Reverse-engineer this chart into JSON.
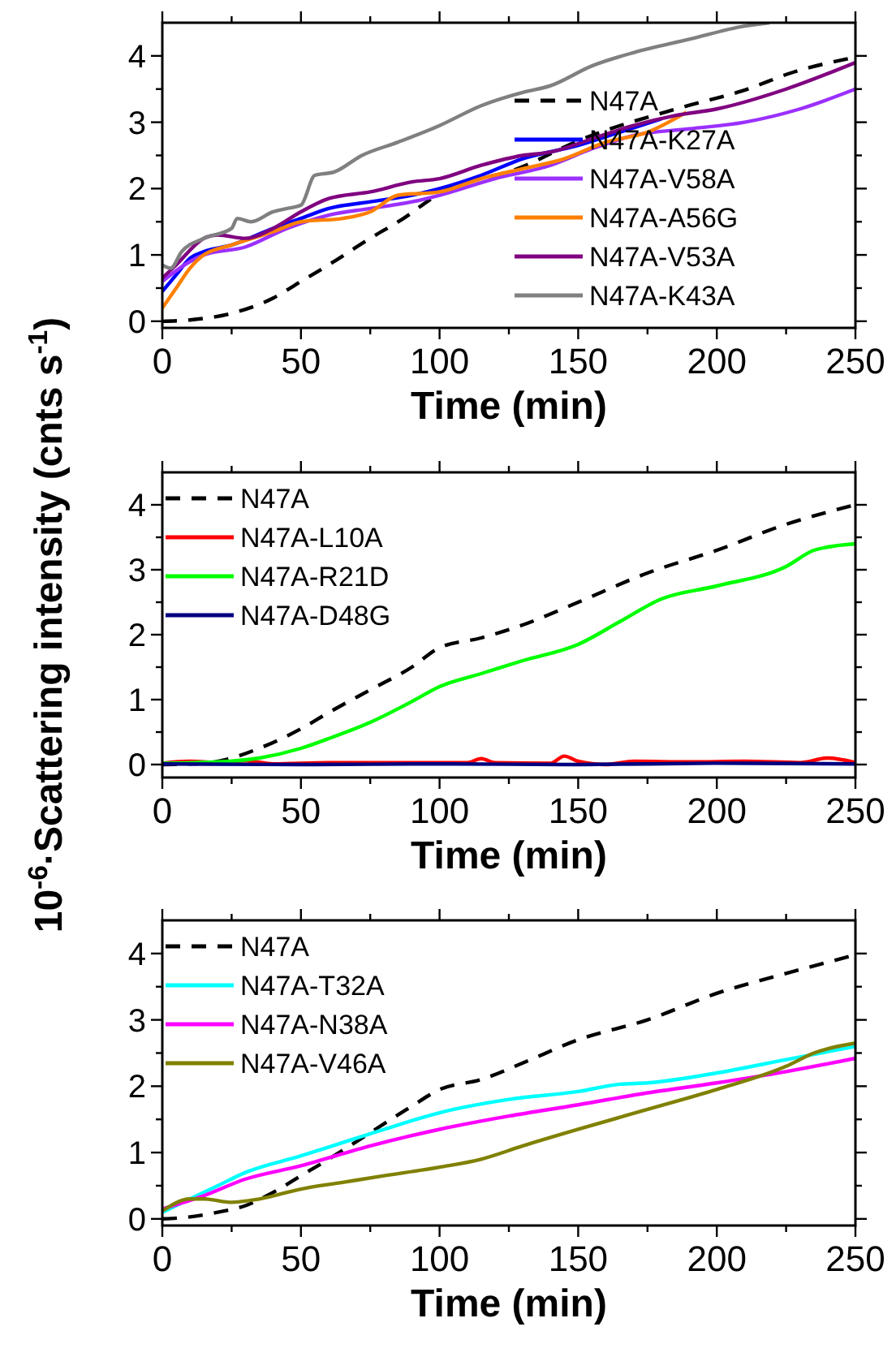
{
  "chart_data": [
    {
      "type": "line",
      "xlabel": "Time (min)",
      "xlim": [
        0,
        250
      ],
      "xticks": [
        0,
        {
          "value": 25,
          "label": null
        },
        50,
        {
          "value": 75,
          "label": null
        },
        100,
        {
          "value": 125,
          "label": null
        },
        150,
        {
          "value": 175,
          "label": null
        },
        200,
        {
          "value": 225,
          "label": null
        },
        250
      ],
      "ylim": [
        -0.1,
        4.5
      ],
      "yticks": [
        0,
        {
          "value": 0.5,
          "label": null
        },
        1,
        {
          "value": 1.5,
          "label": null
        },
        2,
        {
          "value": 2.5,
          "label": null
        },
        3,
        {
          "value": 3.5,
          "label": null
        },
        4
      ],
      "legend": "bottom right",
      "grid": false,
      "series": [
        {
          "name": "N47A",
          "color": "#000000",
          "line_style": "dashed",
          "x": [
            0,
            10,
            25,
            40,
            50,
            60,
            75,
            87,
            99,
            130,
            150,
            187,
            209,
            228,
            250
          ],
          "values": [
            0,
            0.02,
            0.12,
            0.35,
            0.6,
            0.85,
            1.25,
            1.55,
            1.9,
            2.33,
            2.72,
            3.22,
            3.47,
            3.76,
            3.98
          ]
        },
        {
          "name": "N47A-K27A",
          "color": "#0000ff",
          "x": [
            0,
            5,
            10,
            15,
            25,
            40,
            50,
            60,
            75,
            90,
            100,
            115,
            130,
            150,
            165,
            180
          ],
          "values": [
            0.45,
            0.7,
            0.95,
            1.05,
            1.15,
            1.4,
            1.55,
            1.7,
            1.8,
            1.9,
            2.0,
            2.2,
            2.45,
            2.65,
            2.85,
            3.05
          ]
        },
        {
          "name": "N47A-V58A",
          "color": "#9b30ff",
          "x": [
            0,
            10,
            15,
            30,
            45,
            60,
            75,
            90,
            100,
            120,
            140,
            155,
            170,
            190,
            210,
            230,
            250
          ],
          "values": [
            0.6,
            0.9,
            1.0,
            1.12,
            1.4,
            1.6,
            1.7,
            1.8,
            1.9,
            2.15,
            2.35,
            2.6,
            2.8,
            2.9,
            3.0,
            3.2,
            3.5
          ]
        },
        {
          "name": "N47A-A56G",
          "color": "#ff8000",
          "x": [
            0,
            5,
            10,
            15,
            25,
            40,
            50,
            65,
            75,
            85,
            100,
            115,
            130,
            145,
            160,
            175,
            189
          ],
          "values": [
            0.2,
            0.5,
            0.8,
            1.0,
            1.15,
            1.35,
            1.5,
            1.55,
            1.65,
            1.9,
            1.95,
            2.15,
            2.3,
            2.45,
            2.7,
            2.85,
            3.15
          ]
        },
        {
          "name": "N47A-V53A",
          "color": "#800080",
          "x": [
            0,
            5,
            15,
            20,
            30,
            40,
            50,
            60,
            75,
            90,
            100,
            115,
            130,
            140,
            155,
            170,
            185,
            200,
            225,
            250
          ],
          "values": [
            0.65,
            0.85,
            1.25,
            1.3,
            1.25,
            1.4,
            1.65,
            1.85,
            1.95,
            2.1,
            2.15,
            2.35,
            2.5,
            2.55,
            2.75,
            2.95,
            3.1,
            3.2,
            3.5,
            3.9
          ]
        },
        {
          "name": "N47A-K43A",
          "color": "#808080",
          "x": [
            0,
            3,
            7,
            15,
            25,
            27,
            32,
            40,
            45,
            50,
            55,
            62,
            72,
            85,
            100,
            115,
            130,
            140,
            155,
            170,
            190,
            210,
            219
          ],
          "values": [
            0.85,
            0.8,
            1.05,
            1.25,
            1.4,
            1.55,
            1.5,
            1.65,
            1.7,
            1.75,
            2.2,
            2.25,
            2.5,
            2.7,
            2.95,
            3.25,
            3.45,
            3.55,
            3.85,
            4.05,
            4.25,
            4.45,
            4.5
          ]
        }
      ]
    },
    {
      "type": "line",
      "xlabel": "Time (min)",
      "ylabel": "10$^{-6}$·Scattering intensity (cnts s$^{-1}$)",
      "xlim": [
        0,
        250
      ],
      "xticks": [
        0,
        {
          "value": 25,
          "label": null
        },
        50,
        {
          "value": 75,
          "label": null
        },
        100,
        {
          "value": 125,
          "label": null
        },
        150,
        {
          "value": 175,
          "label": null
        },
        200,
        {
          "value": 225,
          "label": null
        },
        250
      ],
      "ylim": [
        -0.2,
        4.5
      ],
      "yticks": [
        0,
        {
          "value": 0.5,
          "label": null
        },
        1,
        {
          "value": 1.5,
          "label": null
        },
        2,
        {
          "value": 2.5,
          "label": null
        },
        3,
        {
          "value": 3.5,
          "label": null
        },
        4
      ],
      "legend": "top left",
      "grid": false,
      "series": [
        {
          "name": "N47A",
          "color": "#000000",
          "line_style": "dashed",
          "x": [
            0,
            15,
            25,
            35,
            50,
            60,
            75,
            90,
            100,
            115,
            130,
            150,
            175,
            200,
            225,
            250
          ],
          "values": [
            0,
            0.02,
            0.1,
            0.25,
            0.55,
            0.8,
            1.15,
            1.5,
            1.8,
            1.95,
            2.15,
            2.5,
            2.95,
            3.3,
            3.7,
            4.0
          ]
        },
        {
          "name": "N47A-L10A",
          "color": "#ff0000",
          "x": [
            0,
            10,
            20,
            30,
            40,
            60,
            80,
            110,
            115,
            120,
            140,
            145,
            150,
            160,
            170,
            190,
            210,
            230,
            240,
            250
          ],
          "values": [
            0.02,
            0.05,
            0.03,
            0.06,
            0.01,
            0.03,
            0.03,
            0.03,
            0.09,
            0.03,
            0.02,
            0.13,
            0.05,
            0,
            0.05,
            0.04,
            0.05,
            0.03,
            0.1,
            0.03
          ]
        },
        {
          "name": "N47A-R21D",
          "color": "#00ff00",
          "x": [
            0,
            20,
            35,
            50,
            60,
            75,
            90,
            100,
            115,
            130,
            150,
            165,
            180,
            200,
            225,
            235,
            240,
            250
          ],
          "values": [
            0.02,
            0.04,
            0.1,
            0.25,
            0.4,
            0.65,
            0.97,
            1.2,
            1.4,
            1.6,
            1.85,
            2.2,
            2.55,
            2.75,
            3.05,
            3.3,
            3.35,
            3.4
          ]
        },
        {
          "name": "N47A-D48G",
          "color": "#000080",
          "x": [
            0,
            50,
            100,
            150,
            200,
            250
          ],
          "values": [
            0.01,
            0,
            0.01,
            0,
            0.02,
            0.01
          ]
        }
      ]
    },
    {
      "type": "line",
      "xlabel": "Time (min)",
      "xlim": [
        0,
        250
      ],
      "xticks": [
        0,
        {
          "value": 25,
          "label": null
        },
        50,
        {
          "value": 75,
          "label": null
        },
        100,
        {
          "value": 125,
          "label": null
        },
        150,
        {
          "value": 175,
          "label": null
        },
        200,
        {
          "value": 225,
          "label": null
        },
        250
      ],
      "ylim": [
        -0.1,
        4.5
      ],
      "yticks": [
        0,
        {
          "value": 0.5,
          "label": null
        },
        1,
        {
          "value": 1.5,
          "label": null
        },
        2,
        {
          "value": 2.5,
          "label": null
        },
        3,
        {
          "value": 3.5,
          "label": null
        },
        4
      ],
      "legend": "top left",
      "grid": false,
      "series": [
        {
          "name": "N47A",
          "color": "#000000",
          "line_style": "dashed",
          "x": [
            0,
            10,
            20,
            30,
            40,
            50,
            60,
            75,
            90,
            100,
            115,
            130,
            150,
            175,
            200,
            225,
            250
          ],
          "values": [
            0,
            0.03,
            0.1,
            0.2,
            0.4,
            0.65,
            0.9,
            1.3,
            1.7,
            1.95,
            2.1,
            2.35,
            2.7,
            3.0,
            3.4,
            3.7,
            3.98
          ]
        },
        {
          "name": "N47A-T32A",
          "color": "#00ffff",
          "x": [
            0,
            10,
            20,
            30,
            50,
            65,
            80,
            100,
            125,
            150,
            165,
            175,
            200,
            225,
            250
          ],
          "values": [
            0.1,
            0.3,
            0.5,
            0.7,
            0.95,
            1.15,
            1.35,
            1.6,
            1.8,
            1.92,
            2.03,
            2.05,
            2.2,
            2.4,
            2.6
          ]
        },
        {
          "name": "N47A-N38A",
          "color": "#ff00ff",
          "x": [
            0,
            15,
            30,
            50,
            75,
            100,
            125,
            150,
            175,
            200,
            225,
            250
          ],
          "values": [
            0.15,
            0.35,
            0.6,
            0.8,
            1.1,
            1.35,
            1.55,
            1.72,
            1.9,
            2.05,
            2.22,
            2.42
          ]
        },
        {
          "name": "N47A-V46A",
          "color": "#808000",
          "x": [
            0,
            10,
            15,
            25,
            35,
            50,
            65,
            80,
            100,
            115,
            130,
            150,
            175,
            200,
            225,
            235,
            250
          ],
          "values": [
            0.12,
            0.3,
            0.3,
            0.25,
            0.3,
            0.45,
            0.55,
            0.65,
            0.78,
            0.9,
            1.1,
            1.35,
            1.65,
            1.95,
            2.3,
            2.5,
            2.65
          ]
        }
      ]
    }
  ]
}
